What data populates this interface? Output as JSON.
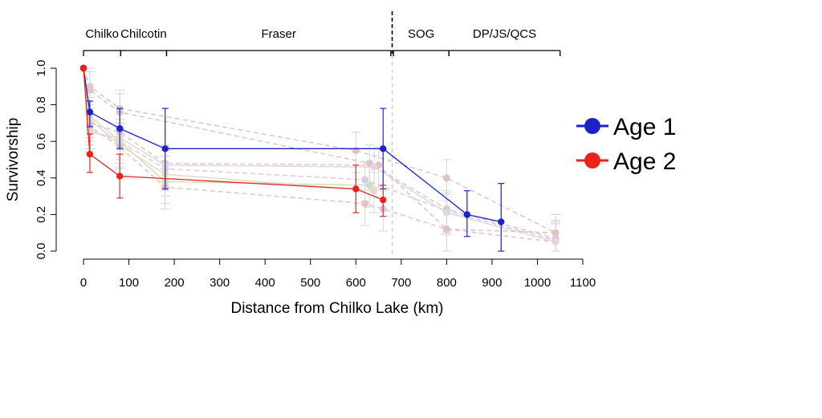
{
  "chart_data": {
    "type": "line",
    "xlabel": "Distance from Chilko Lake (km)",
    "ylabel": "Survivorship",
    "xlim": [
      0,
      1100
    ],
    "ylim": [
      0,
      1.0
    ],
    "x_ticks": [
      0,
      100,
      200,
      300,
      400,
      500,
      600,
      700,
      800,
      900,
      1000,
      1100
    ],
    "y_ticks": [
      0.0,
      0.2,
      0.4,
      0.6,
      0.8,
      1.0
    ],
    "y_tick_labels": [
      "0.0",
      "0.2",
      "0.4",
      "0.6",
      "0.8",
      "1.0"
    ],
    "grid": false,
    "legend_position": "right",
    "regions": [
      {
        "label": "Chilko",
        "start": 0,
        "end": 82
      },
      {
        "label": "Chilcotin",
        "start": 82,
        "end": 183
      },
      {
        "label": "Fraser",
        "start": 183,
        "end": 677
      },
      {
        "label": "SOG",
        "start": 683,
        "end": 805
      },
      {
        "label": "DP/JS/QCS",
        "start": 805,
        "end": 1050
      }
    ],
    "divider_x": 680,
    "series": [
      {
        "name": "Age 1",
        "color": "#1a22c8",
        "x": [
          0,
          14,
          80,
          180,
          660,
          845,
          920
        ],
        "y": [
          1.0,
          0.76,
          0.67,
          0.56,
          0.56,
          0.2,
          0.16
        ],
        "err_low": [
          1.0,
          0.68,
          0.56,
          0.34,
          0.34,
          0.08,
          0.0
        ],
        "err_high": [
          1.0,
          0.82,
          0.78,
          0.78,
          0.78,
          0.33,
          0.37
        ]
      },
      {
        "name": "Age 2",
        "color": "#e8231c",
        "x": [
          0,
          14,
          80,
          600,
          660
        ],
        "y": [
          1.0,
          0.53,
          0.41,
          0.34,
          0.28
        ],
        "err_low": [
          1.0,
          0.43,
          0.29,
          0.21,
          0.19
        ],
        "err_high": [
          1.0,
          0.64,
          0.53,
          0.47,
          0.36
        ]
      }
    ],
    "background_series": [
      {
        "color": "#e0c4c4",
        "dashed": true,
        "x": [
          0,
          14,
          80,
          600,
          800,
          1040
        ],
        "y": [
          1.0,
          0.9,
          0.78,
          0.55,
          0.4,
          0.1
        ]
      },
      {
        "color": "#e0c4c4",
        "dashed": true,
        "x": [
          0,
          14,
          80,
          630,
          800,
          1040
        ],
        "y": [
          1.0,
          0.88,
          0.76,
          0.48,
          0.23,
          0.07
        ]
      },
      {
        "color": "#e0c4c4",
        "dashed": true,
        "x": [
          0,
          14,
          80,
          180,
          650,
          800,
          1040
        ],
        "y": [
          1.0,
          0.7,
          0.65,
          0.48,
          0.47,
          0.12,
          0.05
        ]
      },
      {
        "color": "#d8c8e8",
        "dashed": true,
        "x": [
          0,
          14,
          80,
          180,
          620,
          800,
          1040
        ],
        "y": [
          1.0,
          0.66,
          0.6,
          0.45,
          0.39,
          0.22,
          0.06
        ]
      },
      {
        "color": "#e4d4e4",
        "dashed": false,
        "x": [
          0,
          14,
          80,
          180,
          640,
          800,
          1040
        ],
        "y": [
          1.0,
          0.65,
          0.62,
          0.47,
          0.46,
          0.21,
          0.05
        ]
      },
      {
        "color": "#cfe3b8",
        "dashed": false,
        "x": [
          0,
          14,
          80,
          180,
          630
        ],
        "y": [
          1.0,
          0.74,
          0.6,
          0.38,
          0.36
        ]
      },
      {
        "color": "#e8d8c8",
        "dashed": false,
        "x": [
          0,
          14,
          80,
          180,
          640
        ],
        "y": [
          1.0,
          0.72,
          0.58,
          0.42,
          0.33
        ]
      },
      {
        "color": "#e0c4c4",
        "dashed": true,
        "x": [
          0,
          14,
          80,
          180,
          620,
          660,
          800,
          1040
        ],
        "y": [
          1.0,
          0.68,
          0.57,
          0.35,
          0.26,
          0.23,
          0.12,
          0.1
        ]
      }
    ]
  }
}
